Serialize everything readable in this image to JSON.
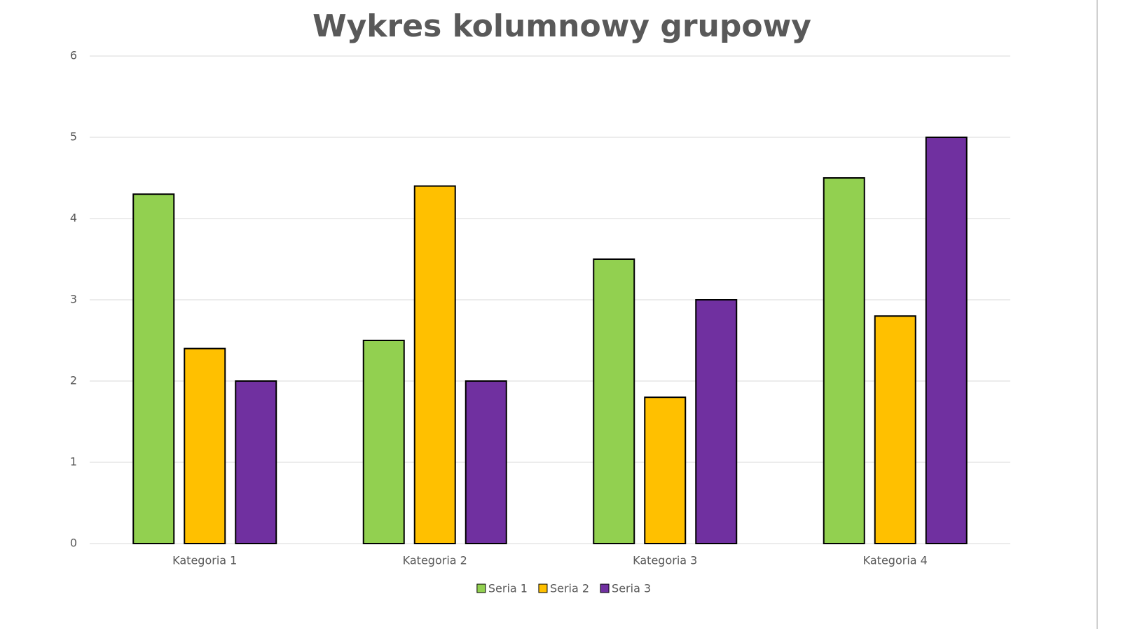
{
  "chart_data": {
    "type": "bar",
    "title": "Wykres kolumnowy grupowy",
    "categories": [
      "Kategoria 1",
      "Kategoria 2",
      "Kategoria 3",
      "Kategoria 4"
    ],
    "series": [
      {
        "name": "Seria 1",
        "color": "#92d050",
        "values": [
          4.3,
          2.5,
          3.5,
          4.5
        ]
      },
      {
        "name": "Seria 2",
        "color": "#ffc000",
        "values": [
          2.4,
          4.4,
          1.8,
          2.8
        ]
      },
      {
        "name": "Seria 3",
        "color": "#7030a0",
        "values": [
          2,
          2,
          3,
          5
        ]
      }
    ],
    "ylim": [
      0,
      6
    ],
    "yticks": [
      0,
      1,
      2,
      3,
      4,
      5,
      6
    ],
    "grid": true,
    "legend": "bottom"
  }
}
